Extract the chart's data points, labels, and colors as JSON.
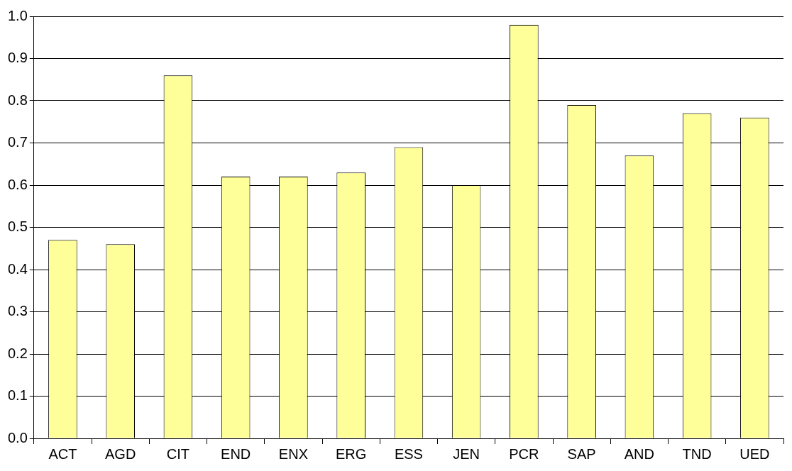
{
  "chart_data": {
    "type": "bar",
    "categories": [
      "ACT",
      "AGD",
      "CIT",
      "END",
      "ENX",
      "ERG",
      "ESS",
      "JEN",
      "PCR",
      "SAP",
      "AND",
      "TND",
      "UED"
    ],
    "values": [
      0.47,
      0.46,
      0.86,
      0.62,
      0.62,
      0.63,
      0.69,
      0.6,
      0.98,
      0.79,
      0.67,
      0.77,
      0.76
    ],
    "color": "#ffff99",
    "ylim": [
      0,
      1
    ],
    "yticks": [
      {
        "value": 0,
        "label": "0.0"
      },
      {
        "value": 0.1,
        "label": "0.1"
      },
      {
        "value": 0.2,
        "label": "0.2"
      },
      {
        "value": 0.3,
        "label": "0.3"
      },
      {
        "value": 0.4,
        "label": "0.4"
      },
      {
        "value": 0.5,
        "label": "0.5"
      },
      {
        "value": 0.6,
        "label": "0.6"
      },
      {
        "value": 0.7,
        "label": "0.7"
      },
      {
        "value": 0.8,
        "label": "0.8"
      },
      {
        "value": 0.9,
        "label": "0.9"
      },
      {
        "value": 1,
        "label": "1.0"
      }
    ],
    "grid": "y",
    "legend": false
  }
}
